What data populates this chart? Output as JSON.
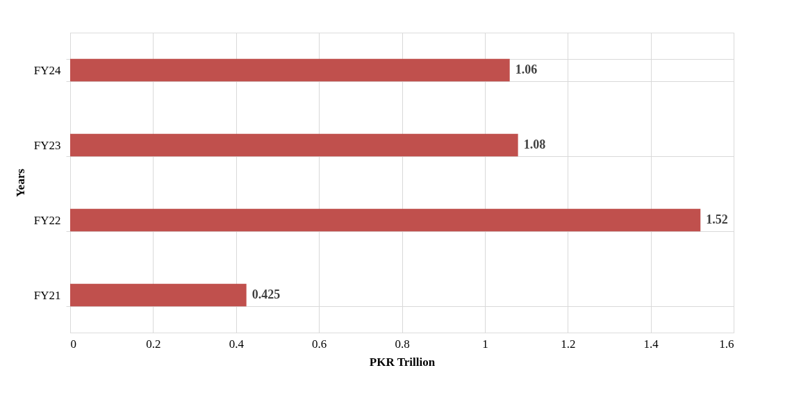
{
  "chart_data": {
    "type": "bar",
    "orientation": "horizontal",
    "xlabel": "PKR Trillion",
    "ylabel": "Years",
    "categories": [
      "FY24",
      "FY23",
      "FY22",
      "FY21"
    ],
    "values": [
      1.06,
      1.08,
      1.52,
      0.425
    ],
    "color": "#c0504d",
    "xlim": [
      0,
      1.6
    ],
    "xticks": [
      0,
      0.2,
      0.4,
      0.6,
      0.8,
      1,
      1.2,
      1.4,
      1.6
    ],
    "grid": true,
    "data_labels": true
  }
}
